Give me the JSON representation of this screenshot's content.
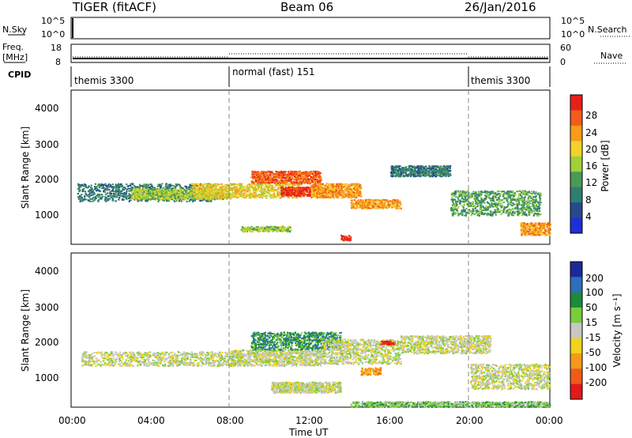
{
  "header": {
    "title": "TIGER (fitACF)",
    "beam": "Beam 06",
    "date": "26/Jan/2016"
  },
  "strips": {
    "nsky_label": "N.Sky",
    "nsky_ticks": [
      "10^5",
      "10^0"
    ],
    "nsearch_label": "N.Search",
    "nsearch_ticks": [
      "10^5",
      "10^0"
    ],
    "freq_label_line1": "Freq.",
    "freq_label_line2": "[MHz]",
    "freq_ticks": [
      "18",
      "8"
    ],
    "nave_label": "Nave",
    "nave_ticks": [
      "60",
      "0"
    ],
    "cpid_label": "CPID",
    "cpid_segments": [
      {
        "label": "themis 3300",
        "start_h": 0,
        "end_h": 8
      },
      {
        "label": "normal (fast) 151",
        "start_h": 8,
        "end_h": 20
      },
      {
        "label": "themis 3300",
        "start_h": 20,
        "end_h": 24
      }
    ]
  },
  "axes": {
    "ylabel": "Slant Range [km]",
    "yticks": [
      "1000",
      "2000",
      "3000",
      "4000"
    ],
    "xticks": [
      "00:00",
      "04:00",
      "08:00",
      "12:00",
      "16:00",
      "20:00",
      "00:00"
    ],
    "xlabel": "Time UT"
  },
  "power_colorbar": {
    "label": "Power [dB]",
    "ticks": [
      "28",
      "24",
      "20",
      "16",
      "12",
      "8",
      "4"
    ],
    "colors": [
      "#e8201a",
      "#f25d1a",
      "#f89a1a",
      "#f3d22a",
      "#9ed13a",
      "#4a9a55",
      "#2e7f72",
      "#27498f",
      "#1f2fd6"
    ]
  },
  "velocity_colorbar": {
    "label": "Velocity [m s⁻¹]",
    "ticks": [
      "200",
      "100",
      "50",
      "15",
      "-15",
      "-50",
      "-100",
      "-200"
    ],
    "colors": [
      "#1c2a98",
      "#2e6fbd",
      "#1e8a3b",
      "#7acc3a",
      "#c7c7c3",
      "#f2d21a",
      "#f49a1a",
      "#ef5b1a",
      "#e21a1a"
    ]
  },
  "chart_data": [
    {
      "type": "heatmap",
      "title": "Power",
      "xlabel": "Time UT",
      "ylabel": "Slant Range [km]",
      "xlim": [
        0,
        24
      ],
      "ylim": [
        180,
        4500
      ],
      "zlabel": "Power [dB]",
      "zlim": [
        0,
        32
      ],
      "blobs": [
        {
          "t0": 0.3,
          "t1": 7.0,
          "r0": 1400,
          "r1": 1900,
          "level": 2
        },
        {
          "t0": 3.0,
          "t1": 8.0,
          "r0": 1450,
          "r1": 1750,
          "level": 4
        },
        {
          "t0": 6.0,
          "t1": 11.5,
          "r0": 1500,
          "r1": 1900,
          "level": 5
        },
        {
          "t0": 9.0,
          "t1": 12.5,
          "r0": 1900,
          "r1": 2250,
          "level": 7
        },
        {
          "t0": 10.5,
          "t1": 12.5,
          "r0": 1550,
          "r1": 1800,
          "level": 8
        },
        {
          "t0": 12.0,
          "t1": 14.5,
          "r0": 1500,
          "r1": 1900,
          "level": 6
        },
        {
          "t0": 14.0,
          "t1": 16.5,
          "r0": 1200,
          "r1": 1450,
          "level": 6
        },
        {
          "t0": 16.0,
          "t1": 19.0,
          "r0": 2100,
          "r1": 2400,
          "level": 2
        },
        {
          "t0": 19.0,
          "t1": 23.5,
          "r0": 1000,
          "r1": 1700,
          "level": 3
        },
        {
          "t0": 22.5,
          "t1": 24.0,
          "r0": 450,
          "r1": 800,
          "level": 6
        },
        {
          "t0": 13.5,
          "t1": 14.0,
          "r0": 300,
          "r1": 450,
          "level": 8
        },
        {
          "t0": 8.5,
          "t1": 11.0,
          "r0": 550,
          "r1": 700,
          "level": 4
        }
      ]
    },
    {
      "type": "heatmap",
      "title": "Velocity",
      "xlabel": "Time UT",
      "ylabel": "Slant Range [km]",
      "xlim": [
        0,
        24
      ],
      "ylim": [
        180,
        4500
      ],
      "zlabel": "Velocity [m s⁻¹]",
      "zlim": [
        -250,
        250
      ],
      "blobs": [
        {
          "t0": 0.5,
          "t1": 8.5,
          "r0": 1350,
          "r1": 1750,
          "level": 4
        },
        {
          "t0": 8.0,
          "t1": 12.5,
          "r0": 1350,
          "r1": 1800,
          "level": 4
        },
        {
          "t0": 9.0,
          "t1": 13.5,
          "r0": 1800,
          "r1": 2300,
          "level": 2
        },
        {
          "t0": 12.5,
          "t1": 16.5,
          "r0": 1400,
          "r1": 2100,
          "level": 4
        },
        {
          "t0": 14.5,
          "t1": 15.5,
          "r0": 1100,
          "r1": 1300,
          "level": 6
        },
        {
          "t0": 16.5,
          "t1": 21.0,
          "r0": 1700,
          "r1": 2200,
          "level": 4
        },
        {
          "t0": 20.0,
          "t1": 24.0,
          "r0": 700,
          "r1": 1400,
          "level": 4
        },
        {
          "t0": 10.0,
          "t1": 13.5,
          "r0": 600,
          "r1": 900,
          "level": 4
        },
        {
          "t0": 14.0,
          "t1": 24.0,
          "r0": 200,
          "r1": 350,
          "level": 3
        },
        {
          "t0": 15.5,
          "t1": 16.2,
          "r0": 1950,
          "r1": 2050,
          "level": 8
        }
      ]
    }
  ]
}
